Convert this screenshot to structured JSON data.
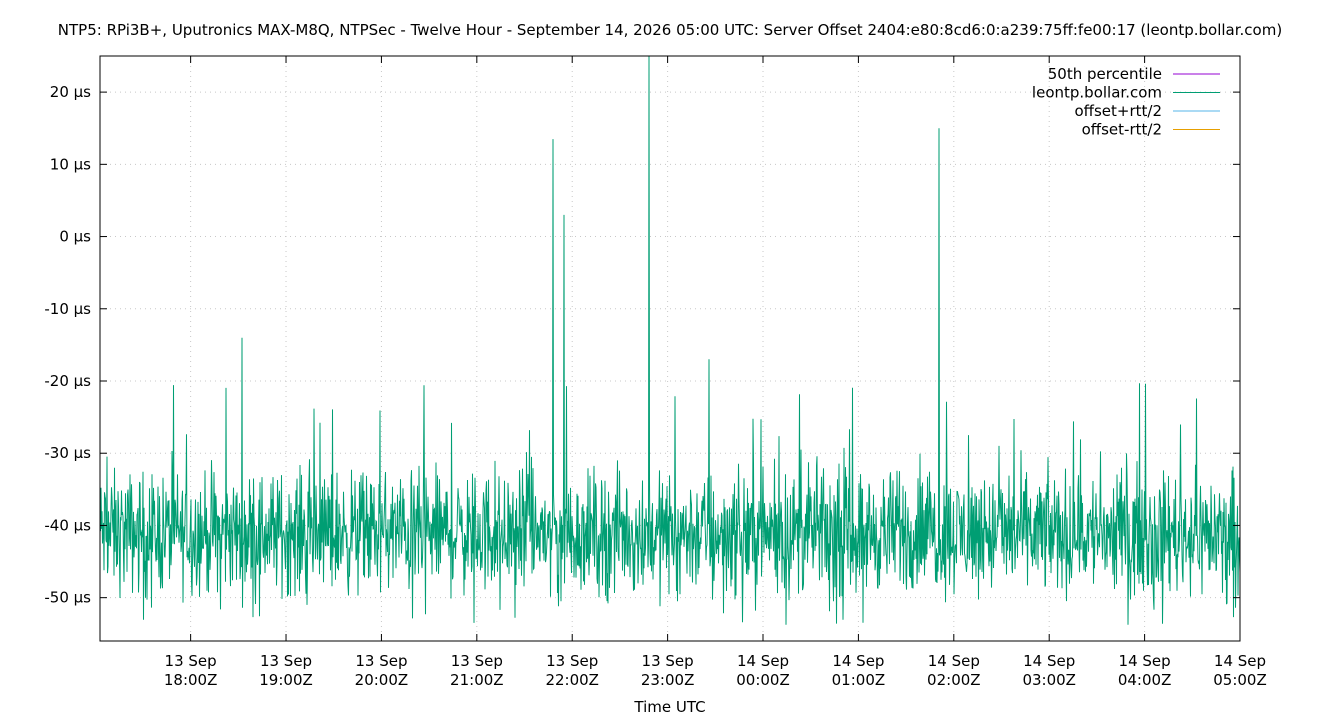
{
  "chart_data": {
    "type": "line",
    "title": "NTP5: RPi3B+, Uputronics MAX-M8Q, NTPSec - Twelve Hour - September 14, 2026 05:00 UTC: Server Offset 2404:e80:8cd6:0:a239:75ff:fe00:17 (leontp.bollar.com)",
    "xlabel": "Time UTC",
    "ylabel": "",
    "x_range": [
      "2026-09-13T17:03Z",
      "2026-09-14T05:00Z"
    ],
    "ylim": [
      -56,
      25
    ],
    "y_unit": "µs",
    "grid": true,
    "legend_position": "top-right",
    "y_ticks": [
      {
        "value": 20,
        "label": "20 µs"
      },
      {
        "value": 10,
        "label": "10 µs"
      },
      {
        "value": 0,
        "label": "0 µs"
      },
      {
        "value": -10,
        "label": "-10 µs"
      },
      {
        "value": -20,
        "label": "-20 µs"
      },
      {
        "value": -30,
        "label": "-30 µs"
      },
      {
        "value": -40,
        "label": "-40 µs"
      },
      {
        "value": -50,
        "label": "-50 µs"
      }
    ],
    "x_ticks": [
      {
        "value": "2026-09-13T18:00Z",
        "line1": "13 Sep",
        "line2": "18:00Z"
      },
      {
        "value": "2026-09-13T19:00Z",
        "line1": "13 Sep",
        "line2": "19:00Z"
      },
      {
        "value": "2026-09-13T20:00Z",
        "line1": "13 Sep",
        "line2": "20:00Z"
      },
      {
        "value": "2026-09-13T21:00Z",
        "line1": "13 Sep",
        "line2": "21:00Z"
      },
      {
        "value": "2026-09-13T22:00Z",
        "line1": "13 Sep",
        "line2": "22:00Z"
      },
      {
        "value": "2026-09-13T23:00Z",
        "line1": "13 Sep",
        "line2": "23:00Z"
      },
      {
        "value": "2026-09-14T00:00Z",
        "line1": "14 Sep",
        "line2": "00:00Z"
      },
      {
        "value": "2026-09-14T01:00Z",
        "line1": "14 Sep",
        "line2": "01:00Z"
      },
      {
        "value": "2026-09-14T02:00Z",
        "line1": "14 Sep",
        "line2": "02:00Z"
      },
      {
        "value": "2026-09-14T03:00Z",
        "line1": "14 Sep",
        "line2": "03:00Z"
      },
      {
        "value": "2026-09-14T04:00Z",
        "line1": "14 Sep",
        "line2": "04:00Z"
      },
      {
        "value": "2026-09-14T05:00Z",
        "line1": "14 Sep",
        "line2": "05:00Z"
      }
    ],
    "series": [
      {
        "name": "50th percentile",
        "color": "#9400d3",
        "values": []
      },
      {
        "name": "leontp.bollar.com",
        "color": "#009e73",
        "typical_range": [
          -48,
          -34
        ],
        "spikes": [
          {
            "x": "2026-09-13T21:48Z",
            "y": 13.5
          },
          {
            "x": "2026-09-13T21:55Z",
            "y": 3
          },
          {
            "x": "2026-09-13T22:48Z",
            "y": 25
          },
          {
            "x": "2026-09-14T01:51Z",
            "y": 15
          },
          {
            "x": "2026-09-13T18:32Z",
            "y": -14
          },
          {
            "x": "2026-09-13T23:26Z",
            "y": -17
          }
        ]
      },
      {
        "name": "offset+rtt/2",
        "color": "#56b4e9",
        "values": []
      },
      {
        "name": "offset-rtt/2",
        "color": "#e69f00",
        "values": []
      }
    ]
  }
}
